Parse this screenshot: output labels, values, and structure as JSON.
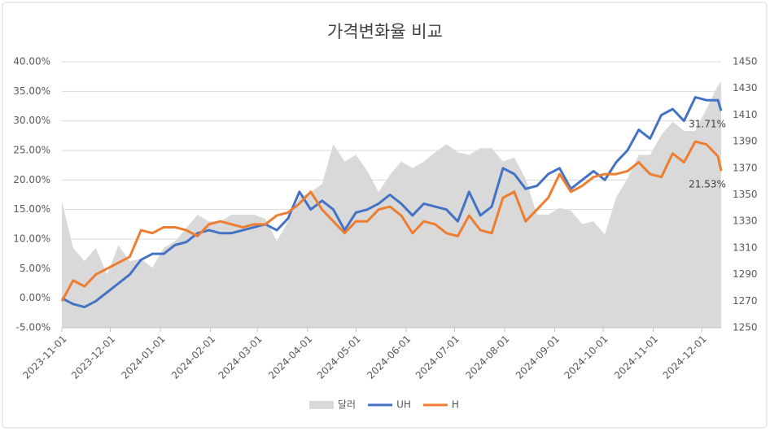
{
  "chart_data": {
    "type": "line",
    "title": "가격변화율 비교",
    "x": [
      "2023-11-01",
      "2023-11-08",
      "2023-11-15",
      "2023-11-22",
      "2023-11-29",
      "2023-12-06",
      "2023-12-13",
      "2023-12-20",
      "2023-12-27",
      "2024-01-03",
      "2024-01-10",
      "2024-01-17",
      "2024-01-24",
      "2024-01-31",
      "2024-02-07",
      "2024-02-14",
      "2024-02-21",
      "2024-02-28",
      "2024-03-06",
      "2024-03-13",
      "2024-03-20",
      "2024-03-27",
      "2024-04-03",
      "2024-04-10",
      "2024-04-17",
      "2024-04-24",
      "2024-05-01",
      "2024-05-08",
      "2024-05-15",
      "2024-05-22",
      "2024-05-29",
      "2024-06-05",
      "2024-06-12",
      "2024-06-19",
      "2024-06-26",
      "2024-07-03",
      "2024-07-10",
      "2024-07-17",
      "2024-07-24",
      "2024-07-31",
      "2024-08-07",
      "2024-08-14",
      "2024-08-21",
      "2024-08-28",
      "2024-09-04",
      "2024-09-11",
      "2024-09-18",
      "2024-09-25",
      "2024-10-02",
      "2024-10-09",
      "2024-10-16",
      "2024-10-23",
      "2024-10-30",
      "2024-11-06",
      "2024-11-13",
      "2024-11-20",
      "2024-11-27",
      "2024-12-04",
      "2024-12-11",
      "2024-12-13"
    ],
    "xlim": [
      "2023-11-01",
      "2024-12-13"
    ],
    "xticks": [
      "2023-11-01",
      "2023-12-01",
      "2024-01-01",
      "2024-02-01",
      "2024-03-01",
      "2024-04-01",
      "2024-05-01",
      "2024-06-01",
      "2024-07-01",
      "2024-08-01",
      "2024-09-01",
      "2024-10-01",
      "2024-11-01",
      "2024-12-01"
    ],
    "ylim": [
      -5,
      40
    ],
    "yticks": [
      {
        "value": -5,
        "label": "-5.00%"
      },
      {
        "value": 0,
        "label": "0.00%"
      },
      {
        "value": 5,
        "label": "5.00%"
      },
      {
        "value": 10,
        "label": "10.00%"
      },
      {
        "value": 15,
        "label": "15.00%"
      },
      {
        "value": 20,
        "label": "20.00%"
      },
      {
        "value": 25,
        "label": "25.00%"
      },
      {
        "value": 30,
        "label": "30.00%"
      },
      {
        "value": 35,
        "label": "35.00%"
      },
      {
        "value": 40,
        "label": "40.00%"
      }
    ],
    "y2lim": [
      1250,
      1450
    ],
    "y2ticks": [
      1250,
      1270,
      1290,
      1310,
      1330,
      1350,
      1370,
      1390,
      1410,
      1430,
      1450
    ],
    "grid": true,
    "legend": "bottom",
    "series": [
      {
        "name": "달러",
        "type": "area",
        "axis": "y2",
        "color": "#d9d9d9",
        "values": [
          1345,
          1310,
          1300,
          1310,
          1290,
          1312,
          1300,
          1302,
          1295,
          1310,
          1315,
          1325,
          1335,
          1330,
          1330,
          1335,
          1335,
          1335,
          1332,
          1315,
          1330,
          1348,
          1352,
          1358,
          1388,
          1375,
          1380,
          1368,
          1352,
          1365,
          1375,
          1370,
          1375,
          1382,
          1388,
          1382,
          1380,
          1385,
          1385,
          1375,
          1378,
          1362,
          1335,
          1335,
          1340,
          1338,
          1328,
          1330,
          1320,
          1348,
          1362,
          1380,
          1380,
          1395,
          1405,
          1398,
          1398,
          1415,
          1432,
          1435
        ]
      },
      {
        "name": "UH",
        "color": "#4472c4",
        "values": [
          0,
          -1,
          -1.5,
          -0.5,
          1,
          2.5,
          4,
          6.5,
          7.5,
          7.5,
          9,
          9.5,
          11,
          11.5,
          11,
          11,
          11.5,
          12,
          12.5,
          11.5,
          13.5,
          18,
          15,
          16.5,
          15,
          11.5,
          14.5,
          15,
          16,
          17.5,
          16,
          14,
          16,
          15.5,
          15,
          13,
          18,
          14,
          15.5,
          22,
          21,
          18.5,
          19,
          21,
          22,
          18.5,
          20,
          21.5,
          20,
          23,
          25,
          28.5,
          27,
          31,
          32,
          30,
          34,
          33.5,
          33.5,
          31.71
        ],
        "value_labels": [
          null,
          null,
          null,
          null,
          null,
          null,
          null,
          null,
          null,
          null,
          null,
          null,
          null,
          null,
          null,
          null,
          null,
          null,
          null,
          null,
          null,
          null,
          null,
          null,
          null,
          null,
          null,
          null,
          null,
          null,
          null,
          null,
          null,
          null,
          null,
          null,
          null,
          null,
          null,
          null,
          null,
          null,
          null,
          null,
          null,
          null,
          null,
          null,
          null,
          null,
          null,
          null,
          null,
          null,
          null,
          null,
          null,
          null,
          null,
          "31.71%"
        ]
      },
      {
        "name": "H",
        "color": "#ed7d31",
        "values": [
          -0.5,
          3,
          2,
          4,
          5,
          6,
          7,
          11.5,
          11,
          12,
          12,
          11.5,
          10.5,
          12.5,
          13,
          12.5,
          12,
          12.5,
          12.5,
          14,
          14.5,
          16,
          18,
          15,
          13,
          11,
          13,
          13,
          15,
          15.5,
          14,
          11,
          13,
          12.5,
          11,
          10.5,
          14,
          11.5,
          11,
          17,
          18,
          13,
          15,
          17,
          21,
          18,
          19,
          20.5,
          21,
          21,
          21.5,
          23,
          21,
          20.5,
          24.5,
          23,
          26.5,
          26,
          24,
          21.53
        ],
        "value_labels": [
          null,
          null,
          null,
          null,
          null,
          null,
          null,
          null,
          null,
          null,
          null,
          null,
          null,
          null,
          null,
          null,
          null,
          null,
          null,
          null,
          null,
          null,
          null,
          null,
          null,
          null,
          null,
          null,
          null,
          null,
          null,
          null,
          null,
          null,
          null,
          null,
          null,
          null,
          null,
          null,
          null,
          null,
          null,
          null,
          null,
          null,
          null,
          null,
          null,
          null,
          null,
          null,
          null,
          null,
          null,
          null,
          null,
          null,
          null,
          "21.53%"
        ]
      }
    ]
  }
}
